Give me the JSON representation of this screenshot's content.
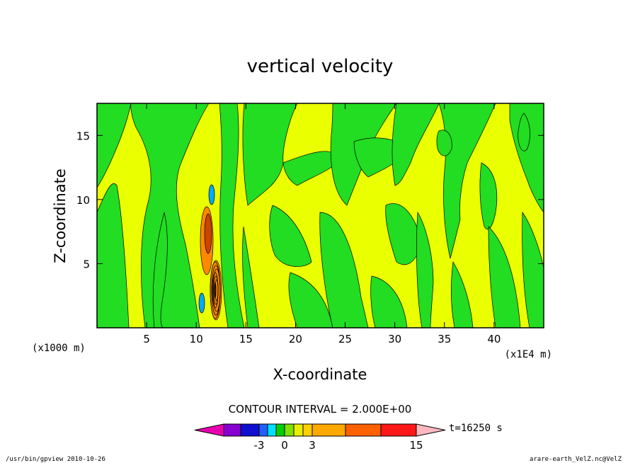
{
  "chart_data": {
    "type": "heatmap",
    "title": "vertical velocity",
    "xlabel": "X-coordinate",
    "ylabel": "Z-coordinate",
    "x_unit_left": "(x1000 m)",
    "x_unit_right": "(x1E4 m)",
    "xlim": [
      0,
      45
    ],
    "ylim": [
      0,
      17.5
    ],
    "x_ticks": [
      5,
      10,
      15,
      20,
      25,
      30,
      35,
      40
    ],
    "y_ticks": [
      5,
      10,
      15
    ],
    "contour_interval_label": "CONTOUR INTERVAL = 2.000E+00",
    "time_label": "t=16250  s",
    "colorbar": {
      "tick_labels": [
        "-3",
        "0",
        "3",
        "15"
      ],
      "colors": [
        "#e800b0",
        "#8800d0",
        "#1010d0",
        "#2060ff",
        "#00e0ff",
        "#00d000",
        "#80e000",
        "#e8f000",
        "#ffd000",
        "#ffa800",
        "#ff6000",
        "#ff1818",
        "#ff7070",
        "#ffb8c0"
      ]
    },
    "field_colors": {
      "positive_weak": "#eaff00",
      "negative_weak": "#22dd22",
      "strong_positive": "#ff8800",
      "strong_positive_core": "#cc4400",
      "strong_negative": "#00aaff"
    }
  },
  "footer": {
    "left": "/usr/bin/gpview   2010-10-26",
    "right": "arare-earth_VelZ.nc@VelZ"
  }
}
